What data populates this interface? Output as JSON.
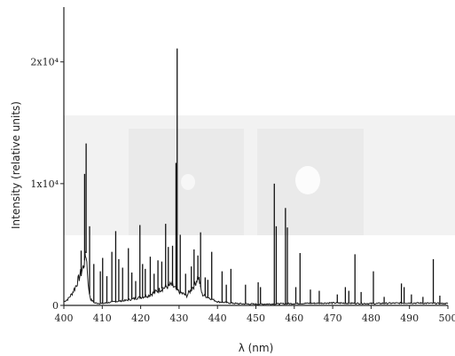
{
  "chart_data": {
    "type": "line",
    "xlabel": "λ (nm)",
    "ylabel": "Intensity (relative units)",
    "xlim": [
      400,
      500
    ],
    "ylim": [
      0,
      24500
    ],
    "x_ticks": [
      "400",
      "410",
      "420",
      "430",
      "440",
      "450",
      "460",
      "470",
      "480",
      "490",
      "500"
    ],
    "y_ticks": [
      {
        "value": 0,
        "label": "0"
      },
      {
        "value": 10000,
        "label": "1x10⁴"
      },
      {
        "value": 20000,
        "label": "2x10⁴"
      }
    ],
    "baseline": [
      [
        400,
        300
      ],
      [
        401,
        500
      ],
      [
        402,
        900
      ],
      [
        403,
        1500
      ],
      [
        404,
        2300
      ],
      [
        405,
        3100
      ],
      [
        405.8,
        4300
      ],
      [
        406.5,
        1200
      ],
      [
        407,
        500
      ],
      [
        408,
        200
      ],
      [
        410,
        150
      ],
      [
        413,
        300
      ],
      [
        416,
        400
      ],
      [
        419,
        600
      ],
      [
        422,
        800
      ],
      [
        425,
        1300
      ],
      [
        428,
        1700
      ],
      [
        430,
        1100
      ],
      [
        432,
        800
      ],
      [
        434,
        1700
      ],
      [
        435,
        2400
      ],
      [
        436,
        900
      ],
      [
        440,
        300
      ],
      [
        445,
        150
      ],
      [
        450,
        100
      ],
      [
        460,
        150
      ],
      [
        470,
        200
      ],
      [
        480,
        150
      ],
      [
        490,
        200
      ],
      [
        500,
        150
      ]
    ],
    "peaks": [
      [
        404.5,
        4500
      ],
      [
        405.4,
        10800
      ],
      [
        405.8,
        13300
      ],
      [
        406.7,
        6500
      ],
      [
        407.8,
        3400
      ],
      [
        409.5,
        2800
      ],
      [
        410.1,
        3900
      ],
      [
        411.2,
        2400
      ],
      [
        412.5,
        4400
      ],
      [
        413.5,
        6100
      ],
      [
        414.3,
        3800
      ],
      [
        415.3,
        3100
      ],
      [
        416.8,
        4700
      ],
      [
        417.7,
        2700
      ],
      [
        418.7,
        2000
      ],
      [
        419.8,
        6600
      ],
      [
        420.5,
        3400
      ],
      [
        421.2,
        3000
      ],
      [
        422.5,
        4000
      ],
      [
        423.5,
        2600
      ],
      [
        424.5,
        3700
      ],
      [
        425.5,
        3600
      ],
      [
        426.5,
        6700
      ],
      [
        427.2,
        4800
      ],
      [
        428.3,
        4900
      ],
      [
        429.2,
        11700
      ],
      [
        429.5,
        21100
      ],
      [
        430.3,
        5800
      ],
      [
        431.7,
        2600
      ],
      [
        433.2,
        3200
      ],
      [
        433.9,
        4600
      ],
      [
        434.9,
        4100
      ],
      [
        435.6,
        6000
      ],
      [
        436.8,
        2300
      ],
      [
        437.5,
        2100
      ],
      [
        438.5,
        4400
      ],
      [
        441.2,
        2800
      ],
      [
        442.3,
        1700
      ],
      [
        443.5,
        3000
      ],
      [
        447.3,
        1700
      ],
      [
        450.6,
        1900
      ],
      [
        451.2,
        1500
      ],
      [
        454.8,
        10000
      ],
      [
        455.3,
        6500
      ],
      [
        457.7,
        8000
      ],
      [
        458.2,
        6400
      ],
      [
        460.4,
        1500
      ],
      [
        461.5,
        4300
      ],
      [
        464.2,
        1300
      ],
      [
        466.5,
        1200
      ],
      [
        471.2,
        900
      ],
      [
        473.3,
        1500
      ],
      [
        474.2,
        1200
      ],
      [
        475.8,
        4200
      ],
      [
        477.4,
        1100
      ],
      [
        480.6,
        2800
      ],
      [
        483.4,
        700
      ],
      [
        487.9,
        1800
      ],
      [
        488.6,
        1500
      ],
      [
        490.5,
        900
      ],
      [
        493.5,
        700
      ],
      [
        496.2,
        3800
      ],
      [
        497.9,
        800
      ]
    ]
  }
}
